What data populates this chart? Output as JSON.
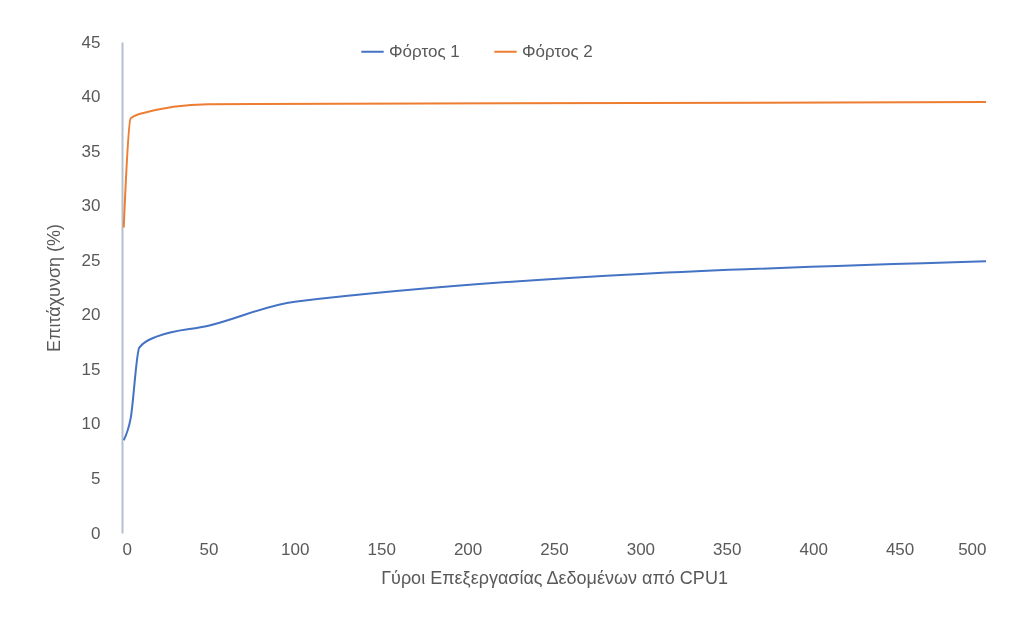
{
  "chart_data": {
    "type": "line",
    "xlabel": "Γύροι Επεξεργασίας Δεδομένων από CPU1",
    "ylabel": "Επιτάχυνση (%)",
    "xlim": [
      0,
      500
    ],
    "xticks": [
      0,
      50,
      100,
      150,
      200,
      250,
      300,
      350,
      400,
      450,
      500
    ],
    "ylim": [
      0,
      45
    ],
    "yticks": [
      0,
      5,
      10,
      15,
      20,
      25,
      30,
      35,
      40,
      45
    ],
    "grid": false,
    "legend": "top",
    "line_style": "solid",
    "marker": "none",
    "series": [
      {
        "name": "Φόρτος 1",
        "color": "#4472c4",
        "x": [
          1,
          5,
          10,
          20,
          50,
          100,
          500
        ],
        "values": [
          8.5,
          10.5,
          17,
          18,
          19,
          21.2,
          24.9
        ]
      },
      {
        "name": "Φόρτος 2",
        "color": "#ed7d31",
        "x": [
          1,
          5,
          10,
          50,
          500
        ],
        "values": [
          28,
          38,
          38.4,
          39.3,
          39.5
        ]
      }
    ]
  }
}
